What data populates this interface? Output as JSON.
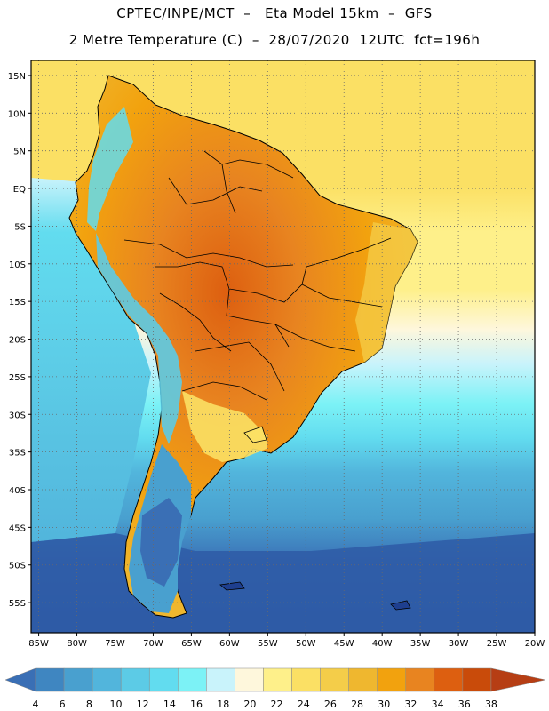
{
  "header": {
    "line1": "CPTEC/INPE/MCT  –   Eta Model 15km  –  GFS",
    "line2": "2 Metre Temperature (C)  –  28/07/2020  12UTC  fct=196h"
  },
  "map": {
    "lon_range": [
      -86,
      -20
    ],
    "lat_range": [
      -59,
      17
    ],
    "lat_ticks": [
      {
        "value": 15,
        "label": "15N"
      },
      {
        "value": 10,
        "label": "10N"
      },
      {
        "value": 5,
        "label": "5N"
      },
      {
        "value": 0,
        "label": "EQ"
      },
      {
        "value": -5,
        "label": "5S"
      },
      {
        "value": -10,
        "label": "10S"
      },
      {
        "value": -15,
        "label": "15S"
      },
      {
        "value": -20,
        "label": "20S"
      },
      {
        "value": -25,
        "label": "25S"
      },
      {
        "value": -30,
        "label": "30S"
      },
      {
        "value": -35,
        "label": "35S"
      },
      {
        "value": -40,
        "label": "40S"
      },
      {
        "value": -45,
        "label": "45S"
      },
      {
        "value": -50,
        "label": "50S"
      },
      {
        "value": -55,
        "label": "55S"
      }
    ],
    "lon_ticks": [
      {
        "value": -85,
        "label": "85W"
      },
      {
        "value": -80,
        "label": "80W"
      },
      {
        "value": -75,
        "label": "75W"
      },
      {
        "value": -70,
        "label": "70W"
      },
      {
        "value": -65,
        "label": "65W"
      },
      {
        "value": -60,
        "label": "60W"
      },
      {
        "value": -55,
        "label": "55W"
      },
      {
        "value": -50,
        "label": "50W"
      },
      {
        "value": -45,
        "label": "45W"
      },
      {
        "value": -40,
        "label": "40W"
      },
      {
        "value": -35,
        "label": "35W"
      },
      {
        "value": -30,
        "label": "30W"
      },
      {
        "value": -25,
        "label": "25W"
      },
      {
        "value": -20,
        "label": "20W"
      }
    ]
  },
  "colorbar": {
    "levels": [
      "4",
      "6",
      "8",
      "10",
      "12",
      "14",
      "16",
      "18",
      "20",
      "22",
      "24",
      "26",
      "28",
      "30",
      "32",
      "34",
      "36",
      "38"
    ],
    "colors": [
      "#3a6fb5",
      "#3f86c1",
      "#49a0cf",
      "#52b5dc",
      "#5ccbe6",
      "#62dcef",
      "#7cf2f6",
      "#c9f3fb",
      "#fef7dc",
      "#fef08a",
      "#fbe064",
      "#f4cd49",
      "#efb72f",
      "#f2a20e",
      "#e88420",
      "#dd5f10",
      "#c94b0a",
      "#b63e14"
    ]
  }
}
